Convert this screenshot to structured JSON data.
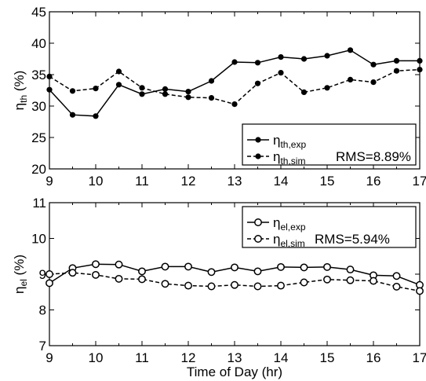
{
  "chart_data": [
    {
      "type": "line",
      "xlabel": "",
      "ylabel": {
        "base": "η",
        "sub": "th",
        "unit": " (%)"
      },
      "xlim": [
        9,
        17
      ],
      "ylim": [
        20,
        45
      ],
      "xticks": [
        "9",
        "10",
        "11",
        "12",
        "13",
        "14",
        "15",
        "16",
        "17"
      ],
      "yticks": [
        "20",
        "25",
        "30",
        "35",
        "40",
        "45"
      ],
      "x": [
        9,
        9.5,
        10,
        10.5,
        11,
        11.5,
        12,
        12.5,
        13,
        13.5,
        14,
        14.5,
        15,
        15.5,
        16,
        16.5,
        17
      ],
      "series": [
        {
          "name": "η_th,exp",
          "label_base": "η",
          "label_sub": "th,exp",
          "style": "solid",
          "marker": "filled-circle",
          "values": [
            32.6,
            28.6,
            28.4,
            33.4,
            31.9,
            32.7,
            32.3,
            34.0,
            37.0,
            36.9,
            37.8,
            37.5,
            38.0,
            38.9,
            36.6,
            37.2,
            37.2
          ]
        },
        {
          "name": "η_th,sim",
          "label_base": "η",
          "label_sub": "th,sim",
          "style": "dashed",
          "marker": "filled-circle",
          "values": [
            34.7,
            32.4,
            32.8,
            35.5,
            32.9,
            31.9,
            31.4,
            31.3,
            30.3,
            33.6,
            35.3,
            32.2,
            32.9,
            34.2,
            33.8,
            35.6,
            35.8
          ]
        }
      ],
      "annotation": "RMS=8.89%",
      "legend_position": "lower-right",
      "grid": false,
      "colors": {
        "line": "#000000",
        "marker": "#000000"
      }
    },
    {
      "type": "line",
      "xlabel": "Time of Day (hr)",
      "ylabel": {
        "base": "η",
        "sub": "el",
        "unit": " (%)"
      },
      "xlim": [
        9,
        17
      ],
      "ylim": [
        7,
        11
      ],
      "xticks": [
        "9",
        "10",
        "11",
        "12",
        "13",
        "14",
        "15",
        "16",
        "17"
      ],
      "yticks": [
        "7",
        "8",
        "9",
        "10",
        "11"
      ],
      "x": [
        9,
        9.5,
        10,
        10.5,
        11,
        11.5,
        12,
        12.5,
        13,
        13.5,
        14,
        14.5,
        15,
        15.5,
        16,
        16.5,
        17
      ],
      "series": [
        {
          "name": "η_el,exp",
          "label_base": "η",
          "label_sub": "el,exp",
          "style": "solid",
          "marker": "open-circle",
          "values": [
            8.75,
            9.17,
            9.28,
            9.27,
            9.08,
            9.21,
            9.21,
            9.06,
            9.19,
            9.08,
            9.2,
            9.19,
            9.2,
            9.13,
            8.97,
            8.95,
            8.7
          ]
        },
        {
          "name": "η_el,sim",
          "label_base": "η",
          "label_sub": "el,sim",
          "style": "dashed",
          "marker": "open-circle",
          "values": [
            9.0,
            9.04,
            8.98,
            8.87,
            8.86,
            8.73,
            8.68,
            8.66,
            8.7,
            8.66,
            8.68,
            8.77,
            8.85,
            8.83,
            8.81,
            8.65,
            8.53
          ]
        }
      ],
      "annotation": "RMS=5.94%",
      "legend_position": "top-right",
      "grid": false,
      "colors": {
        "line": "#000000",
        "marker": "#000000"
      }
    }
  ]
}
